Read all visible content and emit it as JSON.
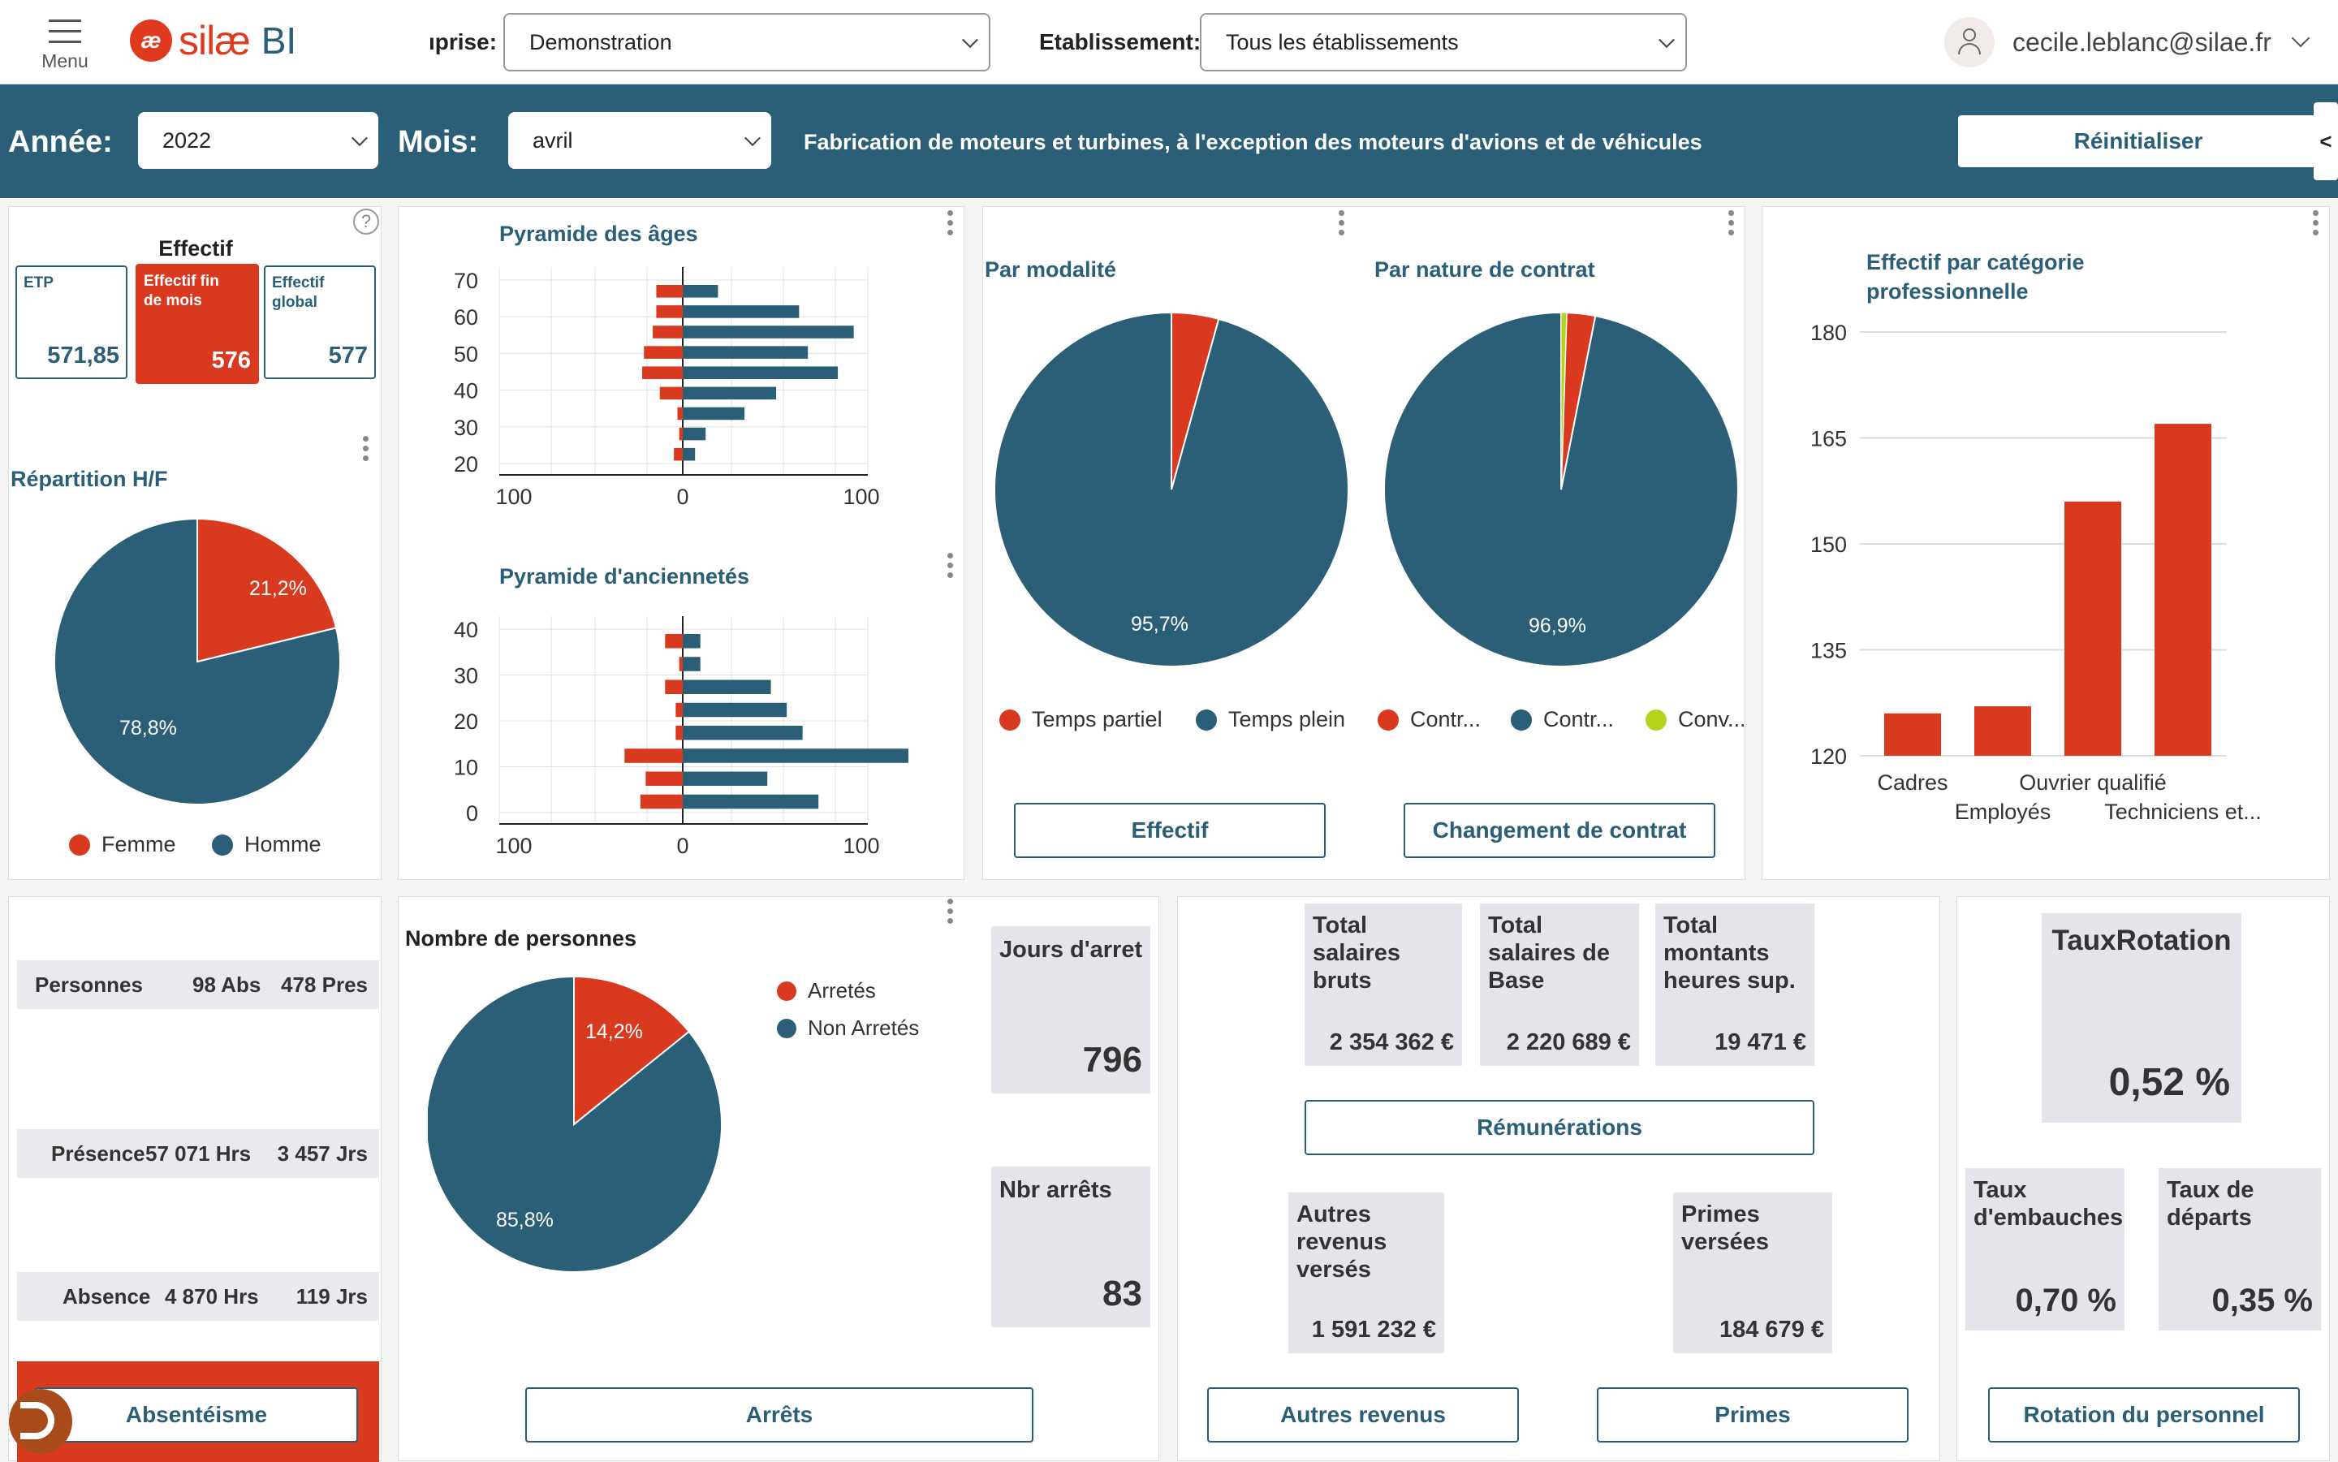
{
  "header": {
    "menu_label": "Menu",
    "logo_mark": "æ",
    "logo_name": "silæ",
    "logo_bi": "BI",
    "entreprise_label": "ıprise:",
    "entreprise_value": "Demonstration",
    "etablissement_label": "Etablissement:",
    "etablissement_value": "Tous les établissements",
    "user_email": "cecile.leblanc@silae.fr"
  },
  "filters": {
    "annee_label": "Année:",
    "annee_value": "2022",
    "mois_label": "Mois:",
    "mois_value": "avril",
    "sector": "Fabrication de moteurs et turbines, à l'exception des moteurs d'avions et de véhicules",
    "reset_label": "Réinitialiser",
    "collapse_glyph": "<"
  },
  "effectif": {
    "title": "Effectif",
    "help_glyph": "?",
    "etp_label": "ETP",
    "etp_value": "571,85",
    "fin_label": "Effectif fin de mois",
    "fin_value": "576",
    "global_label": "Effectif global",
    "global_value": "577"
  },
  "repartition": {
    "title": "Répartition H/F",
    "femme_pct": 21.2,
    "femme_label": "21,2%",
    "homme_label": "78,8%",
    "legend_femme": "Femme",
    "legend_homme": "Homme"
  },
  "pyramide_ages": {
    "title": "Pyramide des âges",
    "y_ticks": [
      "70",
      "60",
      "50",
      "40",
      "30",
      "20"
    ],
    "x_ticks": [
      "100",
      "0",
      "100"
    ],
    "rows": [
      {
        "f": 15,
        "m": 20
      },
      {
        "f": 15,
        "m": 66
      },
      {
        "f": 17,
        "m": 97
      },
      {
        "f": 22,
        "m": 71
      },
      {
        "f": 23,
        "m": 88
      },
      {
        "f": 13,
        "m": 53
      },
      {
        "f": 3,
        "m": 35
      },
      {
        "f": 2,
        "m": 13
      },
      {
        "f": 5,
        "m": 7
      }
    ]
  },
  "pyramide_anciennete": {
    "title": "Pyramide d'anciennetés",
    "y_ticks": [
      "40",
      "30",
      "20",
      "10",
      "0"
    ],
    "x_ticks": [
      "100",
      "0",
      "100"
    ],
    "rows": [
      {
        "f": 10,
        "m": 10
      },
      {
        "f": 2,
        "m": 10
      },
      {
        "f": 10,
        "m": 50
      },
      {
        "f": 4,
        "m": 59
      },
      {
        "f": 4,
        "m": 68
      },
      {
        "f": 33,
        "m": 128
      },
      {
        "f": 21,
        "m": 48
      },
      {
        "f": 24,
        "m": 77
      }
    ]
  },
  "modalite": {
    "title": "Par modalité",
    "partiel_pct": 4.3,
    "plein_label": "95,7%",
    "legend_partiel": "Temps partiel",
    "legend_plein": "Temps plein",
    "button": "Effectif"
  },
  "contrat": {
    "title": "Par nature de contrat",
    "slices": [
      2.6,
      96.9,
      0.5
    ],
    "main_label": "96,9%",
    "legend_1": "Contr...",
    "legend_2": "Contr...",
    "legend_3": "Conv...",
    "button": "Changement de contrat"
  },
  "categorie": {
    "title": "Effectif par catégorie professionnelle",
    "chart_data": {
      "type": "bar",
      "categories": [
        "Cadres",
        "Employés",
        "Ouvrier qualifié",
        "Techniciens et..."
      ],
      "values": [
        126,
        127,
        156,
        167
      ],
      "ylim": [
        120,
        180
      ],
      "yticks": [
        "180",
        "165",
        "150",
        "135",
        "120"
      ]
    }
  },
  "absences": {
    "personnes_label": "Personnes",
    "personnes_abs": "98 Abs",
    "personnes_pres": "478 Pres",
    "presence_label": "Présence",
    "presence_hrs": "57 071 Hrs",
    "presence_jrs": "3 457 Jrs",
    "absence_label": "Absence",
    "absence_hrs": "4 870 Hrs",
    "absence_jrs": "119 Jrs",
    "button": "Absentéisme"
  },
  "arrets": {
    "title": "Nombre de personnes",
    "arretes_pct": 14.2,
    "arretes_label": "14,2%",
    "non_label": "85,8%",
    "legend_arretes": "Arretés",
    "legend_non": "Non Arretés",
    "jours_label": "Jours d'arret",
    "jours_value": "796",
    "nbr_label": "Nbr arrêts",
    "nbr_value": "83",
    "button": "Arrêts"
  },
  "remunerations": {
    "bruts_label": "Total salaires bruts",
    "bruts_value": "2 354 362 €",
    "base_label": "Total salaires de Base",
    "base_value": "2 220 689 €",
    "heures_label": "Total montants heures sup.",
    "heures_value": "19 471 €",
    "button": "Rémunérations",
    "autres_label": "Autres revenus versés",
    "autres_value": "1 591 232 €",
    "primes_label": "Primes versées",
    "primes_value": "184 679 €",
    "autres_button": "Autres revenus",
    "primes_button": "Primes"
  },
  "rotation": {
    "title": "TauxRotation",
    "value": "0,52 %",
    "embauches_label": "Taux d'embauches",
    "embauches_value": "0,70 %",
    "departs_label": "Taux de départs",
    "departs_value": "0,35 %",
    "button": "Rotation du personnel"
  },
  "colors": {
    "primary": "#2b5f78",
    "accent": "#d9391e",
    "lime": "#b5d51c"
  }
}
